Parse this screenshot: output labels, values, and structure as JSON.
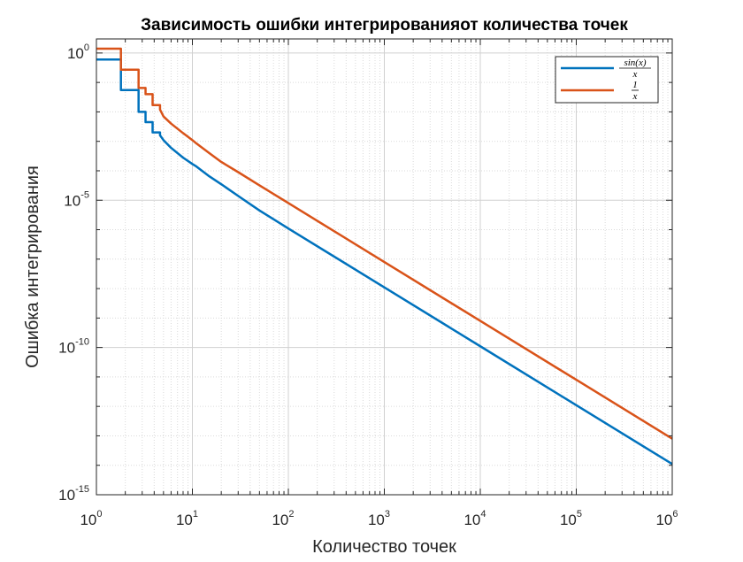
{
  "chart_data": {
    "type": "line",
    "title": "Зависимость ошибки интегрированияот количества точек",
    "xlabel": "Количество точек",
    "ylabel": "Ошибка интегрирования",
    "xscale": "log",
    "yscale": "log",
    "xlim": [
      1,
      1000000
    ],
    "ylim": [
      1e-15,
      3
    ],
    "grid": true,
    "minor_grid": true,
    "legend_position": "top-right",
    "x_ticks": [
      {
        "base": "10",
        "exp": "0"
      },
      {
        "base": "10",
        "exp": "1"
      },
      {
        "base": "10",
        "exp": "2"
      },
      {
        "base": "10",
        "exp": "3"
      },
      {
        "base": "10",
        "exp": "4"
      },
      {
        "base": "10",
        "exp": "5"
      },
      {
        "base": "10",
        "exp": "6"
      }
    ],
    "y_ticks": [
      {
        "base": "10",
        "exp": "0"
      },
      {
        "base": "10",
        "exp": "-5"
      },
      {
        "base": "10",
        "exp": "-10"
      },
      {
        "base": "10",
        "exp": "-15"
      }
    ],
    "series": [
      {
        "name": "sin(x)/x",
        "legend_numerator": "sin(x)",
        "legend_denominator": "x",
        "color": "#0072BD",
        "x": [
          1,
          1.8,
          1.8,
          2.75,
          2.75,
          3.25,
          3.25,
          3.85,
          3.85,
          4.6,
          4.6,
          5,
          6,
          8,
          10,
          11,
          15,
          20,
          30,
          50,
          100,
          1000,
          10000,
          100000,
          1000000
        ],
        "y": [
          0.6,
          0.6,
          0.055,
          0.055,
          0.01,
          0.01,
          0.0045,
          0.0045,
          0.002,
          0.002,
          0.0016,
          0.0011,
          0.0006,
          0.00028,
          0.00017,
          0.00014,
          6.5e-05,
          3.5e-05,
          1.4e-05,
          4.5e-06,
          1.1e-06,
          1.1e-08,
          1.1e-10,
          1.1e-12,
          1.1e-14
        ]
      },
      {
        "name": "1/x",
        "legend_numerator": "1",
        "legend_denominator": "x",
        "color": "#D95319",
        "x": [
          1,
          1.8,
          1.8,
          2.75,
          2.75,
          3.25,
          3.25,
          3.85,
          3.85,
          4.6,
          4.6,
          5,
          6,
          8,
          10,
          11,
          15,
          20,
          30,
          50,
          100,
          1000,
          10000,
          100000,
          1000000
        ],
        "y": [
          1.4,
          1.4,
          0.27,
          0.27,
          0.065,
          0.065,
          0.04,
          0.04,
          0.017,
          0.017,
          0.012,
          0.007,
          0.004,
          0.0019,
          0.0011,
          0.00085,
          0.0004,
          0.0002,
          9e-05,
          3.2e-05,
          8e-06,
          8e-08,
          8e-10,
          8e-12,
          8e-14
        ]
      }
    ]
  }
}
